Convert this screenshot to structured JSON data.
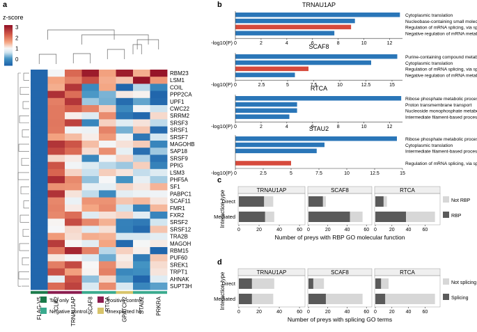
{
  "panel_labels": {
    "a": "a",
    "b": "b",
    "c": "c",
    "d": "d"
  },
  "heatmap": {
    "colorbar_title": "z-score",
    "colorbar_ticks": [
      "3",
      "2",
      "1",
      "0"
    ],
    "columns": [
      "FLAG-V5",
      "CLK2",
      "TRNAU1AP",
      "SCAF8",
      "RTCA",
      "GPATCH2",
      "STAU2",
      "PRKRA"
    ],
    "rows": [
      "RBM23",
      "LSM1",
      "COIL",
      "PPP2CA",
      "UPF1",
      "CWC22",
      "SRRM2",
      "SRSF3",
      "SRSF1",
      "SRSF7",
      "MAGOHB",
      "SAP18",
      "SRSF9",
      "PPIG",
      "LSM3",
      "PHF5A",
      "SF1",
      "PABPC1",
      "SCAF11",
      "FMR1",
      "FXR2",
      "SRSF2",
      "SRSF12",
      "TRA2B",
      "MAGOH",
      "RBM15",
      "PUF60",
      "SREK1",
      "TRPT1",
      "AHNAK",
      "SUPT3H"
    ],
    "column_group_colors": [
      "#1b7a4a",
      "#8b1c4f",
      "#8b1c4f",
      "#3aaa8e",
      "#3aaa8e",
      "#d8c46a",
      "#3aaa8e",
      "#3aaa8e"
    ],
    "legend": [
      {
        "label": "Tag only",
        "color": "#1b7a4a"
      },
      {
        "label": "Positive control",
        "color": "#8b1c4f"
      },
      {
        "label": "Negative control",
        "color": "#3aaa8e"
      },
      {
        "label": "Unexpected hit",
        "color": "#d8c46a"
      }
    ]
  },
  "colors": {
    "blue_bar": "#2a76b8",
    "red_bar": "#d64a3c",
    "dark_bar": "#5a5a5a",
    "light_bar": "#d7d7d7"
  },
  "chart_data": [
    {
      "type": "bar",
      "orientation": "horizontal",
      "title": "TRNAU1AP",
      "xlabel": "-log10(P)",
      "xlim": [
        0,
        13
      ],
      "xticks": [
        0,
        2,
        4,
        6,
        8,
        10,
        12
      ],
      "categories": [
        "Cytoplasmic translation",
        "Nucleobase-containing small molecule metabolic process",
        "Regulation of mRNA splicing, via spliceosome",
        "Negative regulation of mRNA metabolic process"
      ],
      "values": [
        12.8,
        9.3,
        9.0,
        7.7
      ],
      "highlight": [
        false,
        false,
        true,
        false
      ]
    },
    {
      "type": "bar",
      "orientation": "horizontal",
      "title": "SCAF8",
      "xlabel": "-log10(P)",
      "xlim": [
        0,
        16
      ],
      "xticks": [
        0,
        2.5,
        5,
        7.5,
        10,
        12.5,
        15
      ],
      "categories": [
        "Purine-containing compound metabolic process",
        "Cytoplasmic translation",
        "Regulation of mRNA splicing, via spliceosome",
        "Negative regulation of mRNA metabolic process"
      ],
      "values": [
        15.5,
        13.0,
        7.0,
        5.7
      ],
      "highlight": [
        false,
        false,
        true,
        false
      ]
    },
    {
      "type": "bar",
      "orientation": "horizontal",
      "title": "RTCA",
      "xlabel": "-log10(P)",
      "xlim": [
        0,
        13
      ],
      "xticks": [
        0,
        2,
        4,
        6,
        8,
        10,
        12
      ],
      "categories": [
        "Ribose phosphate metabolic process",
        "Proton transmembrane transport",
        "Nucleoside monophosphate metabolic process",
        "Intermediate filament-based process"
      ],
      "values": [
        12.9,
        4.8,
        4.8,
        4.2
      ],
      "highlight": [
        false,
        false,
        false,
        false
      ]
    },
    {
      "type": "bar",
      "orientation": "horizontal",
      "title": "STAU2",
      "xlabel": "-log10(P)",
      "xlim": [
        0,
        15
      ],
      "xticks": [
        0,
        2.5,
        5,
        7.5,
        10,
        12.5,
        15
      ],
      "categories": [
        "Ribose phosphate metabolic process",
        "Cytoplasmic translation",
        "Intermediate filament-based process",
        "",
        "Regulation of mRNA splicing, via spliceosome"
      ],
      "values": [
        14.5,
        8.0,
        7.3,
        0,
        5.0
      ],
      "highlight": [
        false,
        false,
        false,
        false,
        true
      ]
    },
    {
      "type": "bar",
      "orientation": "horizontal",
      "stacked": true,
      "title": "Number of preys with RBP GO molecular function",
      "ylabel": "Interaction type",
      "groups": [
        "TRNAU1AP",
        "SCAF8",
        "RTCA"
      ],
      "categories": [
        "Direct",
        "Mediated"
      ],
      "series": [
        {
          "name": "RBP",
          "values": [
            [
              25,
              15,
              10
            ],
            [
              26,
              43,
              37
            ]
          ]
        },
        {
          "name": "Not RBP",
          "values": [
            [
              9,
              3,
              4
            ],
            [
              9,
              13,
              35
            ]
          ]
        }
      ],
      "xticks": [
        [
          0,
          20,
          40,
          60
        ],
        [
          0,
          20,
          40,
          60
        ],
        [
          0,
          20,
          40,
          60
        ]
      ],
      "xlim": [
        [
          0,
          62
        ],
        [
          0,
          62
        ],
        [
          0,
          74
        ]
      ],
      "legend": [
        "Not RBP",
        "RBP"
      ]
    },
    {
      "type": "bar",
      "orientation": "horizontal",
      "stacked": true,
      "title": "Number of preys with splicing GO terms",
      "ylabel": "Interaction type",
      "groups": [
        "TRNAU1AP",
        "SCAF8",
        "RTCA"
      ],
      "categories": [
        "Direct",
        "Mediated"
      ],
      "series": [
        {
          "name": "Splicing",
          "values": [
            [
              13,
              5,
              7
            ],
            [
              13,
              18,
              12
            ]
          ]
        },
        {
          "name": "Not splicing",
          "values": [
            [
              22,
              11,
              9
            ],
            [
              21,
              38,
              60
            ]
          ]
        }
      ],
      "xticks": [
        [
          0,
          20,
          40,
          60
        ],
        [
          0,
          20,
          40,
          60
        ],
        [
          0,
          20,
          40,
          60
        ]
      ],
      "xlim": [
        [
          0,
          62
        ],
        [
          0,
          62
        ],
        [
          0,
          74
        ]
      ],
      "legend": [
        "Not splicing",
        "Splicing"
      ]
    }
  ]
}
